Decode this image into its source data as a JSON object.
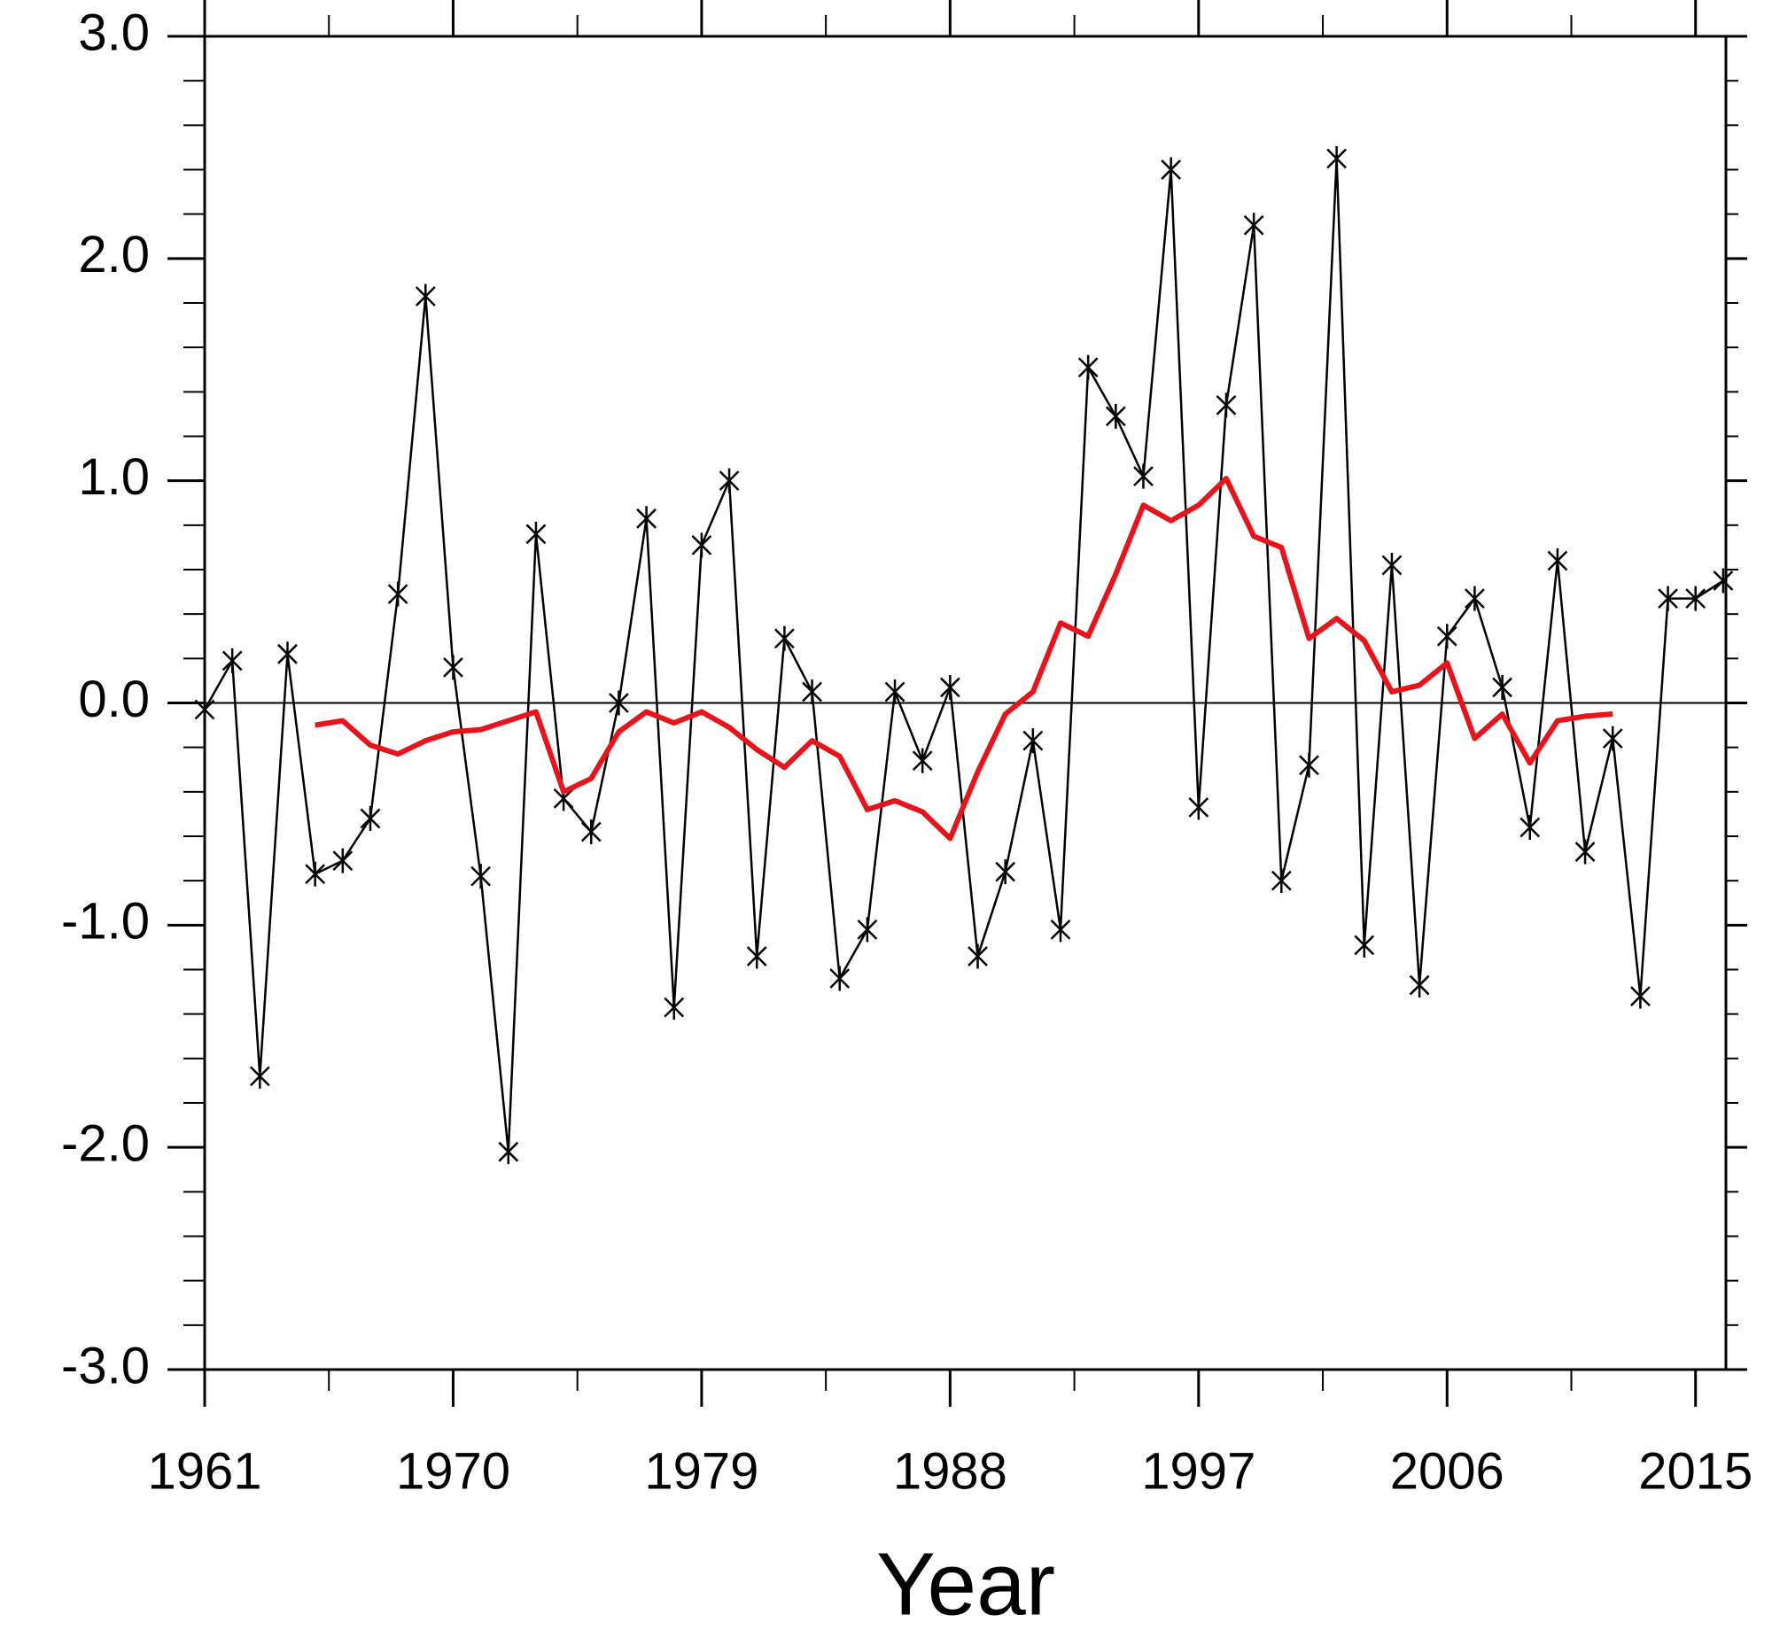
{
  "chart_data": {
    "type": "line",
    "x_label": "Year",
    "x": [
      1961,
      1962,
      1963,
      1964,
      1965,
      1966,
      1967,
      1968,
      1969,
      1970,
      1971,
      1972,
      1973,
      1974,
      1975,
      1976,
      1977,
      1978,
      1979,
      1980,
      1981,
      1982,
      1983,
      1984,
      1985,
      1986,
      1987,
      1988,
      1989,
      1990,
      1991,
      1992,
      1993,
      1994,
      1995,
      1996,
      1997,
      1998,
      1999,
      2000,
      2001,
      2002,
      2003,
      2004,
      2005,
      2006,
      2007,
      2008,
      2009,
      2010,
      2011,
      2012,
      2013,
      2014,
      2015,
      2016
    ],
    "series": [
      {
        "color": "#000000",
        "marker": "asterisk",
        "values": [
          -0.03,
          0.19,
          -1.68,
          0.22,
          -0.77,
          -0.71,
          -0.52,
          0.49,
          1.83,
          0.16,
          -0.78,
          -2.02,
          0.76,
          -0.43,
          -0.58,
          0.0,
          0.83,
          -1.37,
          0.71,
          1.0,
          -1.14,
          0.29,
          0.05,
          -1.24,
          -1.02,
          0.05,
          -0.26,
          0.07,
          -1.14,
          -0.76,
          -0.17,
          -1.02,
          1.51,
          1.29,
          1.02,
          2.4,
          -0.47,
          1.34,
          2.15,
          -0.8,
          -0.28,
          2.45,
          -1.09,
          0.62,
          -1.27,
          0.3,
          0.47,
          0.07,
          -0.56,
          0.64,
          -0.67,
          -0.16,
          -1.32,
          0.47,
          0.47,
          0.55
        ]
      },
      {
        "color": "#e8141c",
        "marker": "none",
        "values": [
          null,
          null,
          null,
          null,
          -0.1,
          -0.08,
          -0.19,
          -0.23,
          -0.17,
          -0.13,
          -0.12,
          -0.08,
          -0.04,
          -0.4,
          -0.34,
          -0.13,
          -0.04,
          -0.09,
          -0.04,
          -0.11,
          -0.21,
          -0.29,
          -0.17,
          -0.24,
          -0.48,
          -0.44,
          -0.49,
          -0.61,
          -0.31,
          -0.05,
          0.05,
          0.36,
          0.3,
          0.58,
          0.89,
          0.82,
          0.89,
          1.01,
          0.75,
          0.7,
          0.29,
          0.38,
          0.28,
          0.05,
          0.08,
          0.18,
          -0.16,
          -0.05,
          -0.27,
          -0.08,
          -0.06,
          -0.05,
          null,
          null,
          null,
          null
        ]
      }
    ],
    "xlim": [
      1961,
      2016.1
    ],
    "ylim": [
      -3,
      3
    ],
    "xticks": [
      1961,
      1970,
      1979,
      1988,
      1997,
      2006,
      2015
    ],
    "xminorticks": [
      1965.5,
      1974.5,
      1983.5,
      1992.5,
      2001.5,
      2010.5
    ],
    "yticks": [
      {
        "value": -3,
        "label": "-3.0"
      },
      {
        "value": -2,
        "label": "-2.0"
      },
      {
        "value": -1,
        "label": "-1.0"
      },
      {
        "value": 0,
        "label": "0.0"
      },
      {
        "value": 1,
        "label": "1.0"
      },
      {
        "value": 2,
        "label": "2.0"
      },
      {
        "value": 3,
        "label": "3.0"
      }
    ],
    "yminorticks": [
      -2.8,
      -2.6,
      -2.4,
      -2.2,
      -1.8,
      -1.6,
      -1.4,
      -1.2,
      -0.8,
      -0.6,
      -0.4,
      -0.2,
      0.2,
      0.4,
      0.6,
      0.8,
      1.2,
      1.4,
      1.6,
      1.8,
      2.2,
      2.4,
      2.6,
      2.8
    ],
    "reference_line": 0
  }
}
